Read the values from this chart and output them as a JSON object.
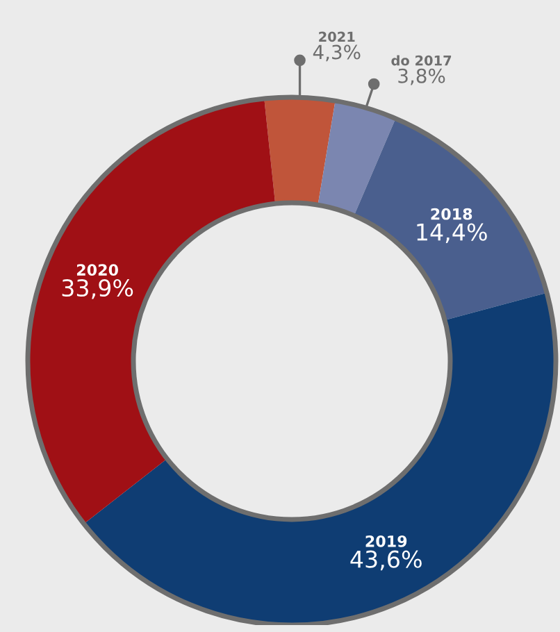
{
  "chart_data": {
    "type": "donut",
    "categories": [
      "2021",
      "do 2017",
      "2018",
      "2019",
      "2020"
    ],
    "values": [
      4.3,
      3.8,
      14.4,
      43.6,
      33.9
    ],
    "value_labels": [
      "4,3%",
      "3,8%",
      "14,4%",
      "43,6%",
      "33,9%"
    ],
    "colors": [
      "#c0553a",
      "#7b86b0",
      "#4a5f8e",
      "#0f3d73",
      "#a01015"
    ]
  }
}
